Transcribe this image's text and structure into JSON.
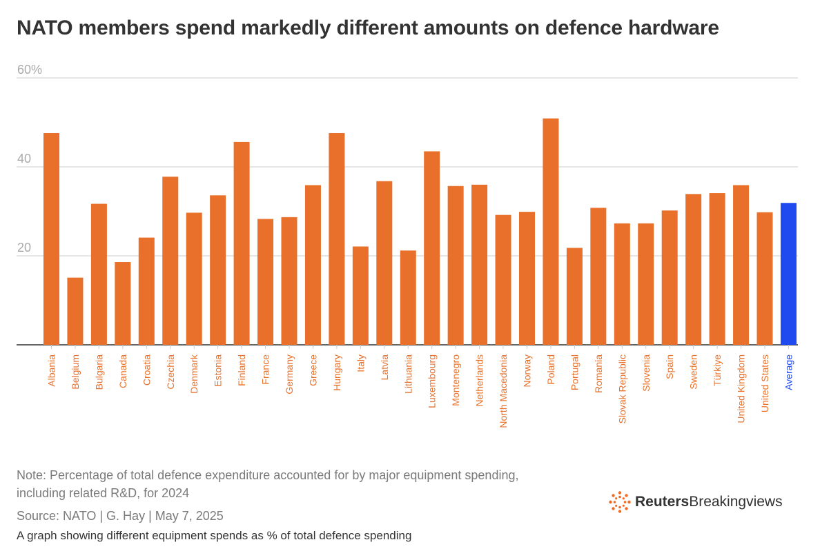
{
  "title": "NATO members spend markedly different amounts on defence hardware",
  "note": "Note: Percentage of total defence expenditure accounted for by major equipment spending, including related R&D, for 2024",
  "source": "Source: NATO | G. Hay | May 7, 2025",
  "caption": "A graph showing different equipment spends as % of total defence spending",
  "logo": {
    "brand_bold": "Reuters",
    "brand_light": "Breakingviews",
    "icon": "reuters-dot-ring-icon"
  },
  "colors": {
    "bar": "#E8702A",
    "average_bar": "#1F4AF0",
    "gridline": "#cccccc",
    "axis": "#333333",
    "tick_label": "#aaaaaa",
    "logo_orange": "#F26B21"
  },
  "chart_data": {
    "type": "bar",
    "categories": [
      "Albania",
      "Belgium",
      "Bulgaria",
      "Canada",
      "Croatia",
      "Czechia",
      "Denmark",
      "Estonia",
      "Finland",
      "France",
      "Germany",
      "Greece",
      "Hungary",
      "Italy",
      "Latvia",
      "Lithuania",
      "Luxembourg",
      "Montenegro",
      "Netherlands",
      "North Macedonia",
      "Norway",
      "Poland",
      "Portugal",
      "Romania",
      "Slovak Republic",
      "Slovenia",
      "Spain",
      "Sweden",
      "Türkiye",
      "United Kingdom",
      "United States",
      "Average"
    ],
    "values": [
      47.6,
      15.1,
      31.7,
      18.6,
      24.1,
      37.8,
      29.7,
      33.6,
      45.6,
      28.3,
      28.7,
      35.9,
      47.6,
      22.1,
      36.8,
      21.2,
      43.5,
      35.7,
      36.0,
      29.2,
      29.9,
      50.9,
      21.8,
      30.8,
      27.3,
      27.3,
      30.2,
      33.9,
      34.1,
      35.9,
      29.8,
      31.9
    ],
    "highlight": "Average",
    "y_ticks": [
      "20",
      "40",
      "60%"
    ],
    "ylim": [
      0,
      60
    ],
    "xlabel": "",
    "ylabel": "",
    "grid": true
  }
}
